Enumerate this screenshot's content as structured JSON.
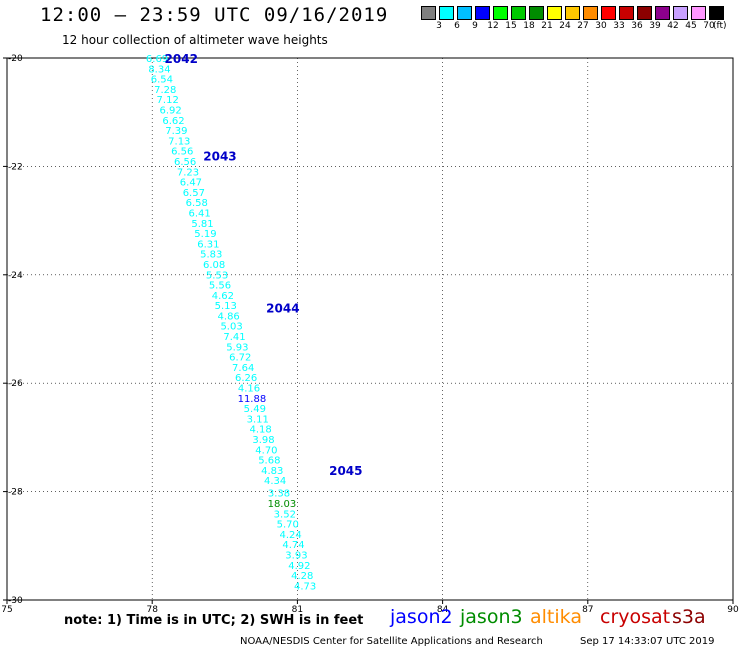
{
  "header": {
    "title": "12:00 – 23:59 UTC 09/16/2019",
    "subtitle": "12 hour collection of altimeter wave heights"
  },
  "scale": {
    "swatches": [
      "#7f7f7f",
      "#00ffff",
      "#00bfff",
      "#0000ff",
      "#00ff00",
      "#00c800",
      "#008c00",
      "#ffff00",
      "#ffc800",
      "#ff8c00",
      "#ff0000",
      "#c80000",
      "#8c0000",
      "#8c008c",
      "#c8a0ff",
      "#ff96ff",
      "#000000"
    ],
    "labels": [
      "3",
      "6",
      "9",
      "12",
      "15",
      "18",
      "21",
      "24",
      "27",
      "30",
      "33",
      "36",
      "39",
      "42",
      "45",
      "70"
    ],
    "unit": "(ft)"
  },
  "map": {
    "x_ticks": [
      "75",
      "78",
      "81",
      "84",
      "87",
      "90"
    ],
    "y_ticks": [
      "-20",
      "-22",
      "-24",
      "-26",
      "-28",
      "-30"
    ],
    "passes": [
      {
        "label": "2042",
        "lat": -20.0,
        "lon": 78.6
      },
      {
        "label": "2043",
        "lat": -21.8,
        "lon": 79.4
      },
      {
        "label": "2044",
        "lat": -24.6,
        "lon": 80.7
      },
      {
        "label": "2045",
        "lat": -27.6,
        "lon": 82.0
      }
    ],
    "observations": [
      {
        "v": "6.69",
        "lat": -20.0,
        "lon": 78.1,
        "c": "#00ffff"
      },
      {
        "v": "8.34",
        "lat": -20.19,
        "lon": 78.15,
        "c": "#00ffff"
      },
      {
        "v": "6.54",
        "lat": -20.38,
        "lon": 78.2,
        "c": "#00ffff"
      },
      {
        "v": "7.28",
        "lat": -20.57,
        "lon": 78.27,
        "c": "#00ffff"
      },
      {
        "v": "7.12",
        "lat": -20.76,
        "lon": 78.32,
        "c": "#00ffff"
      },
      {
        "v": "6.92",
        "lat": -20.95,
        "lon": 78.38,
        "c": "#00ffff"
      },
      {
        "v": "6.62",
        "lat": -21.14,
        "lon": 78.44,
        "c": "#00ffff"
      },
      {
        "v": "7.39",
        "lat": -21.33,
        "lon": 78.5,
        "c": "#00ffff"
      },
      {
        "v": "7.13",
        "lat": -21.52,
        "lon": 78.56,
        "c": "#00ffff"
      },
      {
        "v": "6.56",
        "lat": -21.71,
        "lon": 78.62,
        "c": "#00ffff"
      },
      {
        "v": "6.56",
        "lat": -21.9,
        "lon": 78.68,
        "c": "#00ffff"
      },
      {
        "v": "7.23",
        "lat": -22.09,
        "lon": 78.74,
        "c": "#00ffff"
      },
      {
        "v": "6.47",
        "lat": -22.28,
        "lon": 78.8,
        "c": "#00ffff"
      },
      {
        "v": "6.57",
        "lat": -22.47,
        "lon": 78.86,
        "c": "#00ffff"
      },
      {
        "v": "6.58",
        "lat": -22.66,
        "lon": 78.92,
        "c": "#00ffff"
      },
      {
        "v": "6.41",
        "lat": -22.85,
        "lon": 78.98,
        "c": "#00ffff"
      },
      {
        "v": "5.81",
        "lat": -23.04,
        "lon": 79.04,
        "c": "#00ffff"
      },
      {
        "v": "5.19",
        "lat": -23.23,
        "lon": 79.1,
        "c": "#00ffff"
      },
      {
        "v": "6.31",
        "lat": -23.42,
        "lon": 79.16,
        "c": "#00ffff"
      },
      {
        "v": "5.83",
        "lat": -23.61,
        "lon": 79.22,
        "c": "#00ffff"
      },
      {
        "v": "6.08",
        "lat": -23.8,
        "lon": 79.28,
        "c": "#00ffff"
      },
      {
        "v": "5.53",
        "lat": -23.99,
        "lon": 79.34,
        "c": "#00ffff"
      },
      {
        "v": "5.56",
        "lat": -24.18,
        "lon": 79.4,
        "c": "#00ffff"
      },
      {
        "v": "4.62",
        "lat": -24.37,
        "lon": 79.46,
        "c": "#00ffff"
      },
      {
        "v": "5.13",
        "lat": -24.56,
        "lon": 79.52,
        "c": "#00ffff"
      },
      {
        "v": "4.86",
        "lat": -24.75,
        "lon": 79.58,
        "c": "#00ffff"
      },
      {
        "v": "5.03",
        "lat": -24.94,
        "lon": 79.64,
        "c": "#00ffff"
      },
      {
        "v": "7.41",
        "lat": -25.13,
        "lon": 79.7,
        "c": "#00ffff"
      },
      {
        "v": "5.93",
        "lat": -25.32,
        "lon": 79.76,
        "c": "#00ffff"
      },
      {
        "v": "6.72",
        "lat": -25.51,
        "lon": 79.82,
        "c": "#00ffff"
      },
      {
        "v": "7.64",
        "lat": -25.7,
        "lon": 79.88,
        "c": "#00ffff"
      },
      {
        "v": "6.26",
        "lat": -25.89,
        "lon": 79.94,
        "c": "#00ffff"
      },
      {
        "v": "4.16",
        "lat": -26.08,
        "lon": 80.0,
        "c": "#00ffff"
      },
      {
        "v": "11.88",
        "lat": -26.27,
        "lon": 80.06,
        "c": "#0000ff"
      },
      {
        "v": "5.49",
        "lat": -26.46,
        "lon": 80.12,
        "c": "#00ffff"
      },
      {
        "v": "3.11",
        "lat": -26.65,
        "lon": 80.18,
        "c": "#00ffff"
      },
      {
        "v": "4.18",
        "lat": -26.84,
        "lon": 80.24,
        "c": "#00ffff"
      },
      {
        "v": "3.98",
        "lat": -27.03,
        "lon": 80.3,
        "c": "#00ffff"
      },
      {
        "v": "4.70",
        "lat": -27.22,
        "lon": 80.36,
        "c": "#00ffff"
      },
      {
        "v": "5.68",
        "lat": -27.41,
        "lon": 80.42,
        "c": "#00ffff"
      },
      {
        "v": "4.83",
        "lat": -27.6,
        "lon": 80.48,
        "c": "#00ffff"
      },
      {
        "v": "4.34",
        "lat": -27.79,
        "lon": 80.54,
        "c": "#00ffff"
      },
      {
        "v": "3.38",
        "lat": -28.02,
        "lon": 80.62,
        "c": "#00ffff"
      },
      {
        "v": "18.03",
        "lat": -28.21,
        "lon": 80.68,
        "c": "#008c00"
      },
      {
        "v": "3.52",
        "lat": -28.4,
        "lon": 80.74,
        "c": "#00ffff"
      },
      {
        "v": "5.70",
        "lat": -28.59,
        "lon": 80.8,
        "c": "#00ffff"
      },
      {
        "v": "4.24",
        "lat": -28.78,
        "lon": 80.86,
        "c": "#00ffff"
      },
      {
        "v": "4.74",
        "lat": -28.97,
        "lon": 80.92,
        "c": "#00ffff"
      },
      {
        "v": "3.93",
        "lat": -29.16,
        "lon": 80.98,
        "c": "#00ffff"
      },
      {
        "v": "4.92",
        "lat": -29.35,
        "lon": 81.04,
        "c": "#00ffff"
      },
      {
        "v": "4.28",
        "lat": -29.54,
        "lon": 81.1,
        "c": "#00ffff"
      },
      {
        "v": "4.73",
        "lat": -29.73,
        "lon": 81.16,
        "c": "#00ffff"
      }
    ]
  },
  "footer": {
    "note": "note: 1) Time is in UTC; 2) SWH is in feet",
    "legend": [
      {
        "name": "jason2",
        "color": "#0000ff"
      },
      {
        "name": "jason3",
        "color": "#008c00"
      },
      {
        "name": "altika",
        "color": "#ff8c00"
      },
      {
        "name": "cryosat",
        "color": "#c80000"
      },
      {
        "name": "s3a",
        "color": "#8c0000"
      }
    ],
    "credit": "NOAA/NESDIS Center for Satellite Applications and Research",
    "timestamp": "Sep 17 14:33:07 UTC 2019"
  }
}
